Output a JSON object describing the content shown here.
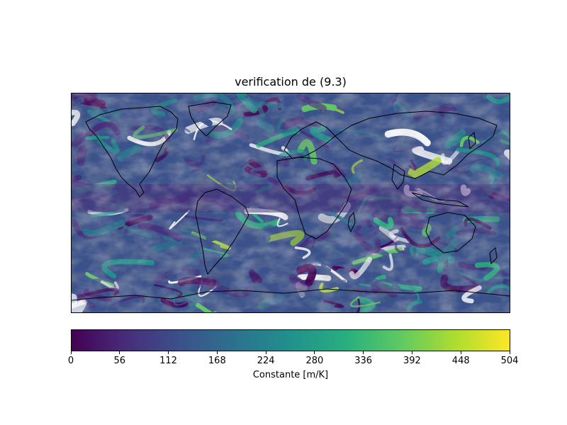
{
  "title": "verification de (9.3)",
  "colorbar": {
    "label": "Constante [m/K]",
    "ticks": [
      "0",
      "56",
      "112",
      "168",
      "224",
      "280",
      "336",
      "392",
      "448",
      "504"
    ],
    "min": 0,
    "max": 504,
    "colormap": [
      "#440154",
      "#472d7b",
      "#3b528b",
      "#2c728e",
      "#21918c",
      "#28ae80",
      "#5ec962",
      "#addc30",
      "#fde725"
    ]
  },
  "map": {
    "projection": "equirectangular",
    "coastline_color": "#000000",
    "missing_color": "#ffffff"
  }
}
